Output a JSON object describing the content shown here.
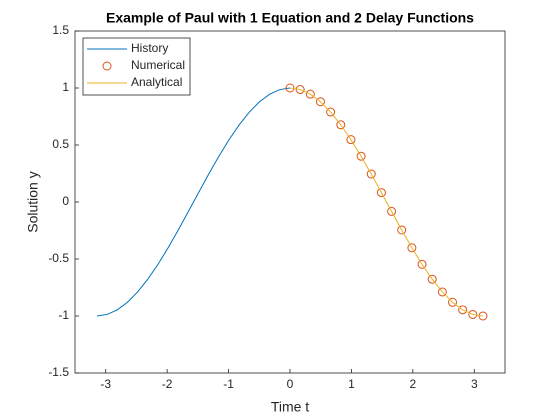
{
  "chart_data": {
    "type": "line",
    "title": "Example of Paul with 1 Equation and 2 Delay Functions",
    "xlabel": "Time t",
    "ylabel": "Solution y",
    "xlim": [
      -3.5,
      3.5
    ],
    "xticks": [
      -3,
      -2,
      -1,
      0,
      1,
      2,
      3
    ],
    "ylim": [
      -1.5,
      1.5
    ],
    "yticks": [
      -1.5,
      -1,
      -0.5,
      0,
      0.5,
      1,
      1.5
    ],
    "legend": "upper left",
    "series": [
      {
        "name": "History",
        "color": "#0072bd",
        "style": "line",
        "x": [
          -3.1416,
          -2.9762,
          -2.8109,
          -2.6456,
          -2.4802,
          -2.3149,
          -2.1495,
          -1.9842,
          -1.8188,
          -1.6535,
          -1.4881,
          -1.3228,
          -1.1574,
          -0.9921,
          -0.8267,
          -0.6614,
          -0.496,
          -0.3307,
          -0.1653,
          0
        ],
        "values": [
          -1,
          -0.9864,
          -0.9458,
          -0.8795,
          -0.7891,
          -0.6773,
          -0.5469,
          -0.4017,
          -0.2455,
          -0.0826,
          0.0826,
          0.2455,
          0.4017,
          0.5469,
          0.6773,
          0.7891,
          0.8795,
          0.9458,
          0.9864,
          1
        ]
      },
      {
        "name": "Numerical",
        "color": "#d95319",
        "style": "marker",
        "x": [
          0,
          0.1653,
          0.3307,
          0.496,
          0.6614,
          0.8267,
          0.9921,
          1.1574,
          1.3228,
          1.4881,
          1.6535,
          1.8188,
          1.9842,
          2.1495,
          2.3149,
          2.4802,
          2.6456,
          2.8109,
          2.9762,
          3.1416
        ],
        "values": [
          1,
          0.9864,
          0.9458,
          0.8795,
          0.7891,
          0.6773,
          0.5469,
          0.4017,
          0.2455,
          0.0826,
          -0.0826,
          -0.2455,
          -0.4017,
          -0.5469,
          -0.6773,
          -0.7891,
          -0.8795,
          -0.9458,
          -0.9864,
          -1
        ]
      },
      {
        "name": "Analytical",
        "color": "#edb120",
        "style": "line",
        "x": [
          0,
          0.1653,
          0.3307,
          0.496,
          0.6614,
          0.8267,
          0.9921,
          1.1574,
          1.3228,
          1.4881,
          1.6535,
          1.8188,
          1.9842,
          2.1495,
          2.3149,
          2.4802,
          2.6456,
          2.8109,
          2.9762,
          3.1416
        ],
        "values": [
          1,
          0.9864,
          0.9458,
          0.8795,
          0.7891,
          0.6773,
          0.5469,
          0.4017,
          0.2455,
          0.0826,
          -0.0826,
          -0.2455,
          -0.4017,
          -0.5469,
          -0.6773,
          -0.7891,
          -0.8795,
          -0.9458,
          -0.9864,
          -1
        ]
      }
    ]
  }
}
